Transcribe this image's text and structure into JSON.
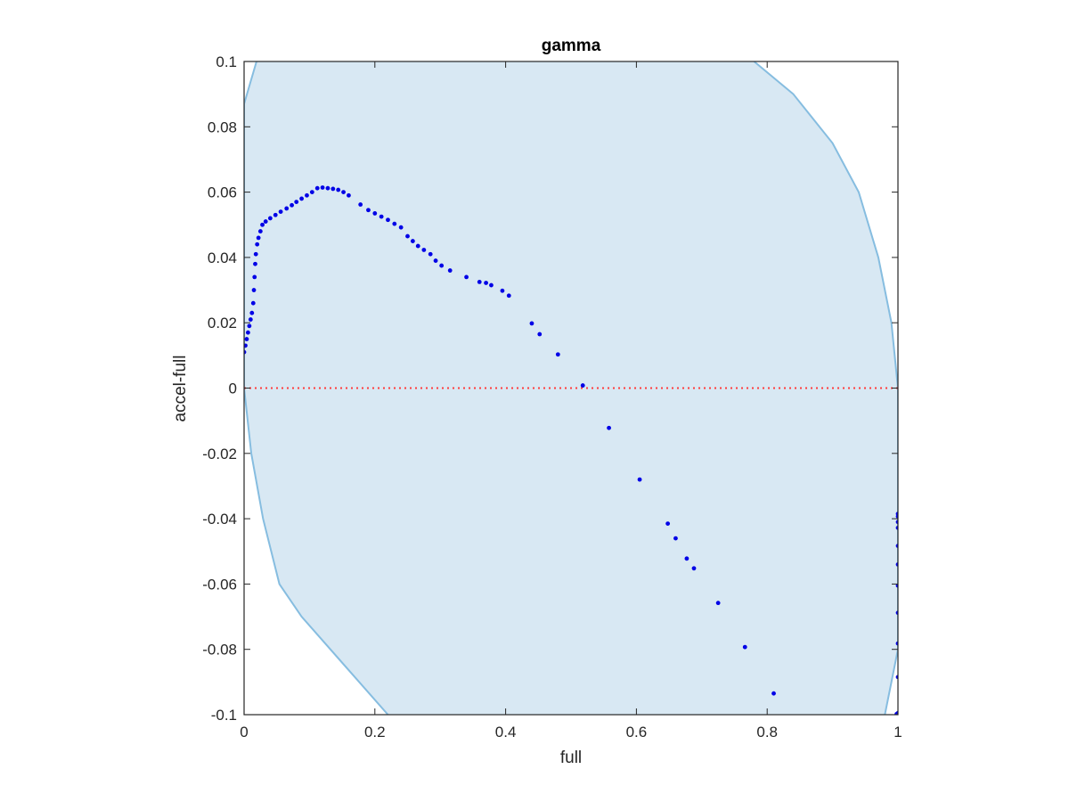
{
  "chart_data": {
    "type": "scatter",
    "title": "gamma",
    "xlabel": "full",
    "ylabel": "accel-full",
    "xlim": [
      0,
      1
    ],
    "ylim": [
      -0.1,
      0.1
    ],
    "xticks": [
      0,
      0.2,
      0.4,
      0.6,
      0.8,
      1
    ],
    "xtick_labels": [
      "0",
      "0.2",
      "0.4",
      "0.6",
      "0.8",
      "1"
    ],
    "yticks": [
      -0.1,
      -0.08,
      -0.06,
      -0.04,
      -0.02,
      0,
      0.02,
      0.04,
      0.06,
      0.08,
      0.1
    ],
    "ytick_labels": [
      "-0.1",
      "-0.08",
      "-0.06",
      "-0.04",
      "-0.02",
      "0",
      "0.02",
      "0.04",
      "0.06",
      "0.08",
      "0.1"
    ],
    "grid": false,
    "colors": {
      "points": "#0000e6",
      "zero_line": "#ff3b3b",
      "region_fill": "#d8e8f3",
      "region_edge": "#86bde0",
      "axes": "#262626"
    },
    "region": {
      "description_type": "shaded band",
      "left_boundary": [
        [
          0.019,
          0.1
        ],
        [
          0.0,
          0.087
        ],
        [
          0.0,
          0.0
        ],
        [
          0.011,
          -0.02
        ],
        [
          0.029,
          -0.04
        ],
        [
          0.054,
          -0.06
        ],
        [
          0.088,
          -0.07
        ],
        [
          0.132,
          -0.08
        ],
        [
          0.22,
          -0.1
        ]
      ],
      "right_boundary": [
        [
          0.78,
          0.1
        ],
        [
          0.84,
          0.09
        ],
        [
          0.9,
          0.075
        ],
        [
          0.94,
          0.06
        ],
        [
          0.97,
          0.04
        ],
        [
          0.99,
          0.02
        ],
        [
          1.0,
          0.0
        ],
        [
          1.0,
          -0.08
        ],
        [
          0.98,
          -0.1
        ]
      ]
    },
    "series": [
      {
        "values": [
          [
            0.0,
            0.011
          ],
          [
            0.002,
            0.013
          ],
          [
            0.004,
            0.015
          ],
          [
            0.006,
            0.017
          ],
          [
            0.008,
            0.019
          ],
          [
            0.01,
            0.021
          ],
          [
            0.012,
            0.023
          ],
          [
            0.014,
            0.026
          ],
          [
            0.015,
            0.03
          ],
          [
            0.016,
            0.034
          ],
          [
            0.017,
            0.038
          ],
          [
            0.018,
            0.041
          ],
          [
            0.02,
            0.044
          ],
          [
            0.022,
            0.046
          ],
          [
            0.025,
            0.048
          ],
          [
            0.028,
            0.05
          ],
          [
            0.033,
            0.051
          ],
          [
            0.04,
            0.052
          ],
          [
            0.048,
            0.053
          ],
          [
            0.056,
            0.054
          ],
          [
            0.065,
            0.055
          ],
          [
            0.073,
            0.056
          ],
          [
            0.08,
            0.057
          ],
          [
            0.088,
            0.058
          ],
          [
            0.096,
            0.059
          ],
          [
            0.104,
            0.06
          ],
          [
            0.112,
            0.0612
          ],
          [
            0.12,
            0.0614
          ],
          [
            0.128,
            0.0612
          ],
          [
            0.136,
            0.061
          ],
          [
            0.144,
            0.0607
          ],
          [
            0.152,
            0.06
          ],
          [
            0.16,
            0.059
          ],
          [
            0.178,
            0.0562
          ],
          [
            0.19,
            0.0545
          ],
          [
            0.2,
            0.0535
          ],
          [
            0.21,
            0.0525
          ],
          [
            0.22,
            0.0515
          ],
          [
            0.23,
            0.0503
          ],
          [
            0.24,
            0.0492
          ],
          [
            0.25,
            0.0465
          ],
          [
            0.258,
            0.045
          ],
          [
            0.266,
            0.0435
          ],
          [
            0.275,
            0.0423
          ],
          [
            0.285,
            0.041
          ],
          [
            0.293,
            0.039
          ],
          [
            0.302,
            0.0375
          ],
          [
            0.315,
            0.036
          ],
          [
            0.34,
            0.034
          ],
          [
            0.36,
            0.0325
          ],
          [
            0.37,
            0.0322
          ],
          [
            0.378,
            0.0315
          ],
          [
            0.395,
            0.0298
          ],
          [
            0.405,
            0.0283
          ],
          [
            0.44,
            0.0198
          ],
          [
            0.452,
            0.0165
          ],
          [
            0.48,
            0.0103
          ],
          [
            0.518,
            0.0008
          ],
          [
            0.558,
            -0.0122
          ],
          [
            0.605,
            -0.028
          ],
          [
            0.648,
            -0.0415
          ],
          [
            0.66,
            -0.046
          ],
          [
            0.677,
            -0.0522
          ],
          [
            0.688,
            -0.0552
          ],
          [
            0.725,
            -0.0658
          ],
          [
            0.766,
            -0.0793
          ],
          [
            0.81,
            -0.0935
          ],
          [
            1.0,
            -0.0385
          ],
          [
            1.0,
            -0.0393
          ],
          [
            1.0,
            -0.041
          ],
          [
            1.0,
            -0.0428
          ],
          [
            1.0,
            -0.0483
          ],
          [
            1.0,
            -0.054
          ],
          [
            1.0,
            -0.0605
          ],
          [
            1.0,
            -0.0688
          ],
          [
            1.0,
            -0.0782
          ],
          [
            1.0,
            -0.0885
          ],
          [
            1.0,
            -0.0995
          ],
          [
            0.998,
            -0.0998
          ]
        ]
      }
    ]
  }
}
